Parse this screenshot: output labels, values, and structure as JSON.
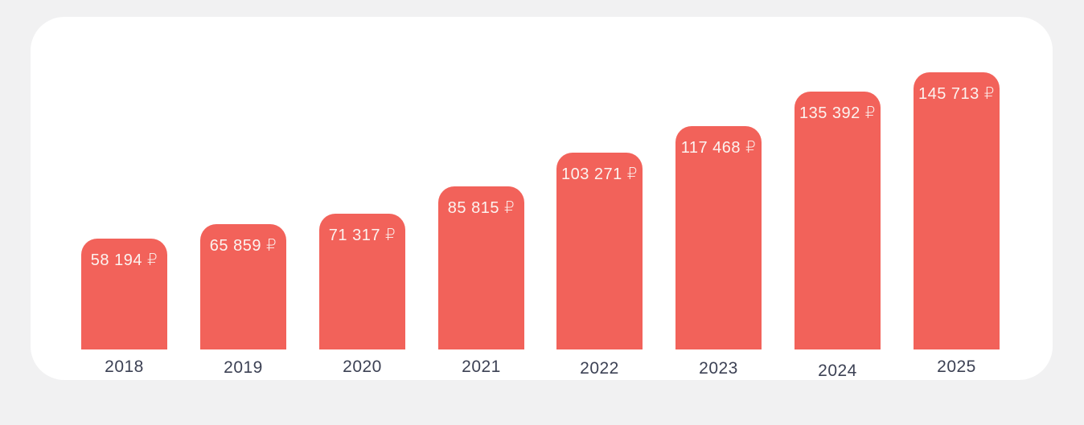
{
  "theme": {
    "page_bg": "#F1F1F2",
    "card_bg": "#FFFFFF",
    "bar_color": "#F2625A",
    "bar_label_color": "#FCF3F0",
    "axis_label_color": "#3C4154"
  },
  "chart_data": {
    "type": "bar",
    "orientation": "vertical",
    "title": "",
    "xlabel": "",
    "ylabel": "",
    "categories": [
      "2018",
      "2019",
      "2020",
      "2021",
      "2022",
      "2023",
      "2024",
      "2025"
    ],
    "values": [
      58194,
      65859,
      71317,
      85815,
      103271,
      117468,
      135392,
      145713
    ],
    "value_labels": [
      "58 194 ₽",
      "65 859 ₽",
      "71 317 ₽",
      "85 815 ₽",
      "103 271 ₽",
      "117 468 ₽",
      "135 392 ₽",
      "145 713 ₽"
    ],
    "currency_symbol": "₽",
    "ylim": [
      0,
      145713
    ],
    "grid": false,
    "legend": "none",
    "value_label_position": "inside-top",
    "bar_color": "#F2625A"
  }
}
